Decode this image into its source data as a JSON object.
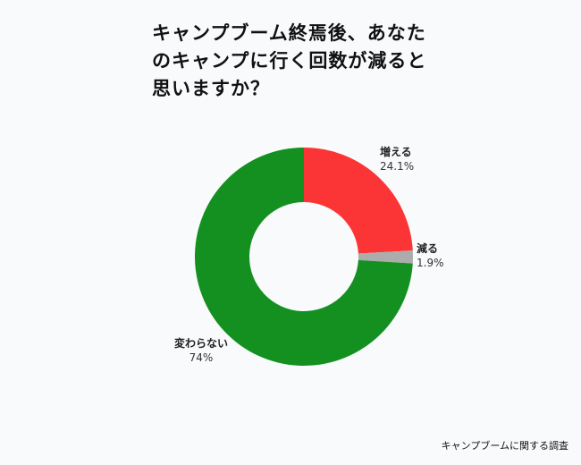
{
  "title_lines": [
    "キャンプブーム終焉後、あなた",
    "のキャンプに行く回数が減ると",
    "思いますか？"
  ],
  "source": "キャンプブームに関する調査",
  "colors": {
    "background": "#f9fafc",
    "increase": "#fb3535",
    "decrease": "#acacac",
    "unchanged": "#13901f"
  },
  "chart_data": {
    "type": "pie",
    "donut": true,
    "title": "キャンプブーム終焉後、あなたのキャンプに行く回数が減ると思いますか？",
    "slices": [
      {
        "label": "増える",
        "value": 24.1,
        "value_label": "24.1%",
        "color": "#fb3535"
      },
      {
        "label": "減る",
        "value": 1.9,
        "value_label": "1.9%",
        "color": "#acacac"
      },
      {
        "label": "変わらない",
        "value": 74,
        "value_label": "74%",
        "color": "#13901f"
      }
    ],
    "legend": "none"
  }
}
